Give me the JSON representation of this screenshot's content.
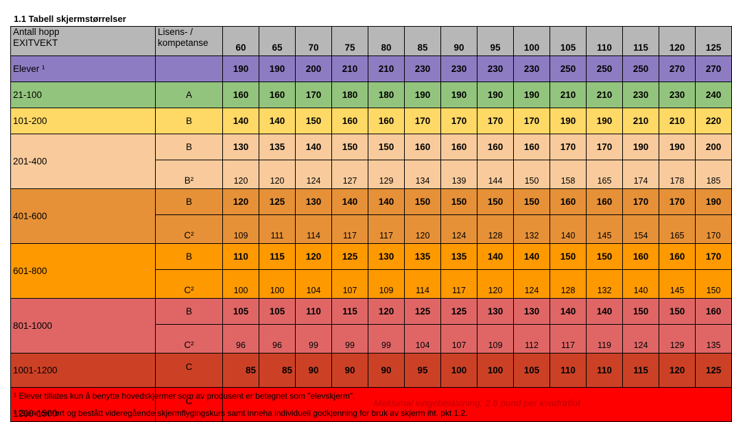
{
  "title": "1.1 Tabell skjermstørrelser",
  "header": {
    "range_line1": "Antall hopp",
    "range_line2": "EXITVEKT",
    "license_line1": "Lisens- /",
    "license_line2": "kompetanse",
    "weights": [
      "60",
      "65",
      "70",
      "75",
      "80",
      "85",
      "90",
      "95",
      "100",
      "105",
      "110",
      "115",
      "120",
      "125"
    ]
  },
  "colors": {
    "header": "#b7b7b7",
    "elever": "#8e7cc3",
    "r21_100": "#93c47d",
    "r101_200": "#ffd966",
    "r201_400": "#f9cb9c",
    "r401_600": "#e69138",
    "r601_800": "#ff9900",
    "r801_1000": "#e06666",
    "r1001_1200": "#cc4125",
    "r1200_1500": "#ff0000"
  },
  "groups": [
    {
      "range": "Elever ¹",
      "color": "#8e7cc3",
      "rows": [
        {
          "license": "",
          "values": [
            "190",
            "190",
            "200",
            "210",
            "210",
            "230",
            "230",
            "230",
            "230",
            "250",
            "250",
            "250",
            "270",
            "270"
          ],
          "bold": true
        }
      ]
    },
    {
      "range": "21-100",
      "color": "#93c47d",
      "rows": [
        {
          "license": "A",
          "values": [
            "160",
            "160",
            "170",
            "180",
            "180",
            "190",
            "190",
            "190",
            "190",
            "210",
            "210",
            "230",
            "230",
            "240"
          ],
          "bold": true
        }
      ]
    },
    {
      "range": "101-200",
      "color": "#ffd966",
      "rows": [
        {
          "license": "B",
          "values": [
            "140",
            "140",
            "150",
            "160",
            "160",
            "170",
            "170",
            "170",
            "170",
            "190",
            "190",
            "210",
            "210",
            "220"
          ],
          "bold": true
        }
      ]
    },
    {
      "range": "201-400",
      "color": "#f9cb9c",
      "rows": [
        {
          "license": "B",
          "values": [
            "130",
            "135",
            "140",
            "150",
            "150",
            "160",
            "160",
            "160",
            "160",
            "170",
            "170",
            "190",
            "190",
            "200"
          ],
          "bold": true
        },
        {
          "license": "B²",
          "values": [
            "120",
            "120",
            "124",
            "127",
            "129",
            "134",
            "139",
            "144",
            "150",
            "158",
            "165",
            "174",
            "178",
            "185"
          ],
          "bold": false
        }
      ]
    },
    {
      "range": "401-600",
      "color": "#e69138",
      "rows": [
        {
          "license": "B",
          "values": [
            "120",
            "125",
            "130",
            "140",
            "140",
            "150",
            "150",
            "150",
            "150",
            "160",
            "160",
            "170",
            "170",
            "190"
          ],
          "bold": true
        },
        {
          "license": "C²",
          "values": [
            "109",
            "111",
            "114",
            "117",
            "117",
            "120",
            "124",
            "128",
            "132",
            "140",
            "145",
            "154",
            "165",
            "170"
          ],
          "bold": false
        }
      ]
    },
    {
      "range": "601-800",
      "color": "#ff9900",
      "rows": [
        {
          "license": "B",
          "values": [
            "110",
            "115",
            "120",
            "125",
            "130",
            "135",
            "135",
            "140",
            "140",
            "150",
            "150",
            "160",
            "160",
            "170"
          ],
          "bold": true
        },
        {
          "license": "C²",
          "values": [
            "100",
            "100",
            "104",
            "107",
            "109",
            "114",
            "117",
            "120",
            "124",
            "128",
            "132",
            "140",
            "145",
            "150"
          ],
          "bold": false
        }
      ]
    },
    {
      "range": "801-1000",
      "color": "#e06666",
      "rows": [
        {
          "license": "B",
          "values": [
            "105",
            "105",
            "110",
            "115",
            "120",
            "125",
            "125",
            "130",
            "130",
            "140",
            "140",
            "150",
            "150",
            "160"
          ],
          "bold": true
        },
        {
          "license": "C²",
          "values": [
            "96",
            "96",
            "99",
            "99",
            "99",
            "104",
            "107",
            "109",
            "112",
            "117",
            "119",
            "124",
            "129",
            "135"
          ],
          "bold": false
        }
      ]
    },
    {
      "range": "1001-1200",
      "color": "#cc4125",
      "rows": [
        {
          "license": "C",
          "values": [
            "85",
            "85",
            "90",
            "90",
            "90",
            "95",
            "100",
            "100",
            "105",
            "110",
            "110",
            "115",
            "120",
            "125"
          ],
          "bold": true
        }
      ]
    }
  ],
  "last_row": {
    "range": "1200-1500",
    "license": "C",
    "message": "Maksimal vingebelastning: 2.6 pund per kvadratfot",
    "color": "#ff0000"
  },
  "footnotes": [
    "¹ Elever tillates kun å benytte hovedskjermer som av produsent er betegnet som \"elevskjerm\".",
    "² Gjennomført og bestått videregående skjermflygingskurs samt inneha individuell godkjenning for bruk av skjerm iht. pkt 1.2."
  ]
}
